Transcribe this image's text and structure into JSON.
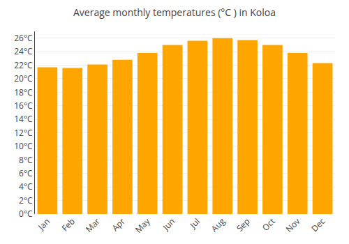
{
  "chart_data": {
    "type": "bar",
    "title": "Average monthly temperatures (°C ) in Koloa",
    "categories": [
      "Jan",
      "Feb",
      "Mar",
      "Apr",
      "May",
      "Jun",
      "Jul",
      "Aug",
      "Sep",
      "Oct",
      "Nov",
      "Dec"
    ],
    "values": [
      21.7,
      21.6,
      22.1,
      22.8,
      23.8,
      25.0,
      25.6,
      26.0,
      25.7,
      25.0,
      23.8,
      22.3
    ],
    "color": "#FFA500",
    "ylim": [
      0,
      27
    ],
    "yticks": [
      {
        "value": 0,
        "label": "0°C"
      },
      {
        "value": 2,
        "label": "2°C"
      },
      {
        "value": 4,
        "label": "4°C"
      },
      {
        "value": 6,
        "label": "6°C"
      },
      {
        "value": 8,
        "label": "8°C"
      },
      {
        "value": 10,
        "label": "10°C"
      },
      {
        "value": 12,
        "label": "12°C"
      },
      {
        "value": 14,
        "label": "14°C"
      },
      {
        "value": 16,
        "label": "16°C"
      },
      {
        "value": 18,
        "label": "18°C"
      },
      {
        "value": 20,
        "label": "20°C"
      },
      {
        "value": 22,
        "label": "22°C"
      },
      {
        "value": 24,
        "label": "24°C"
      },
      {
        "value": 26,
        "label": "26°C"
      }
    ],
    "grid": true
  }
}
